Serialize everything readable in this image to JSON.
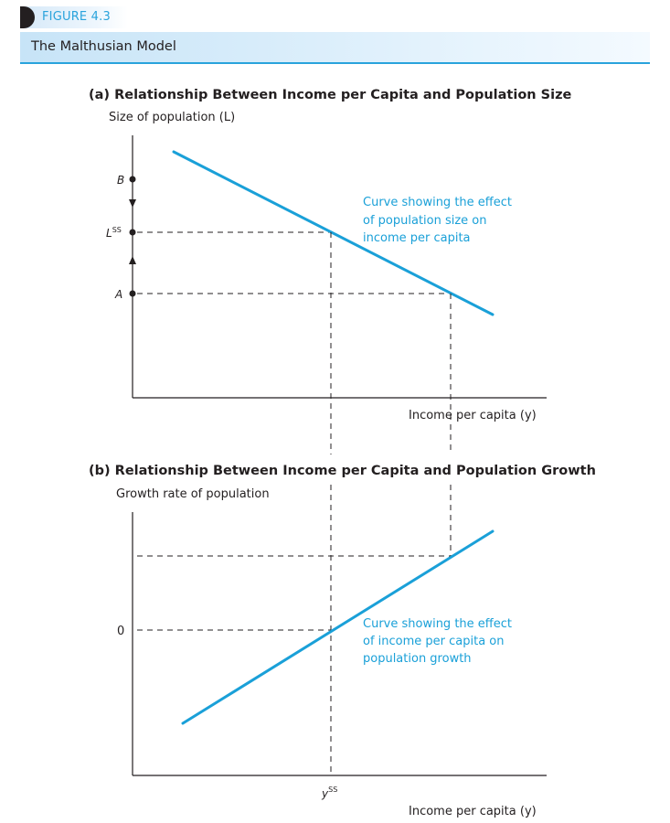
{
  "figure": {
    "label": "FIGURE 4.3",
    "title": "The Malthusian Model"
  },
  "panel_a": {
    "title": "(a) Relationship Between Income per Capita and Population Size",
    "y_axis_title": "Size of population (L)",
    "x_axis_title": "Income per capita (y)",
    "point_b": "B",
    "point_lss": "L",
    "point_lss_sup": "SS",
    "point_a": "A",
    "curve_note": [
      "Curve showing the effect",
      "of population size on",
      "income per capita"
    ]
  },
  "panel_b": {
    "title": "(b) Relationship Between Income per Capita and Population Growth",
    "y_axis_title": "Growth rate of population",
    "x_axis_title": "Income per capita (y)",
    "zero_label": "0",
    "yss_label": "y",
    "yss_sup": "SS",
    "curve_note": [
      "Curve showing the effect",
      "of income per capita on",
      "population growth"
    ]
  },
  "colors": {
    "curve": "#1aa0d8",
    "axis": "#231f20",
    "accent": "#29a3dc"
  }
}
